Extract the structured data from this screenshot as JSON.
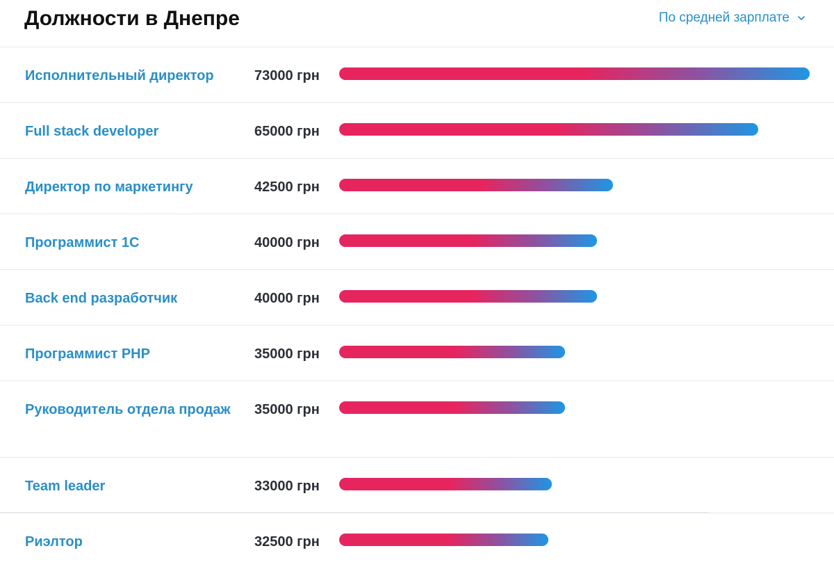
{
  "header": {
    "title": "Должности в Днепре",
    "sort_label": "По средней зарплате",
    "sort_icon": "chevron-down-icon"
  },
  "colors": {
    "link": "#2a8fc6",
    "bar_start": "#e6255f",
    "bar_end": "#1f96e3"
  },
  "chart_data": {
    "type": "bar",
    "orientation": "horizontal",
    "categories": [
      "Исполнительный директор",
      "Full stack developer",
      "Директор по маркетингу",
      "Программист 1С",
      "Back end разработчик",
      "Программист PHP",
      "Руководитель отдела продаж",
      "Team leader",
      "Риэлтор"
    ],
    "values": [
      73000,
      65000,
      42500,
      40000,
      40000,
      35000,
      35000,
      33000,
      32500
    ],
    "value_labels": [
      "73000 грн",
      "65000 грн",
      "42500 грн",
      "40000 грн",
      "40000 грн",
      "35000 грн",
      "35000 грн",
      "33000 грн",
      "32500 грн"
    ],
    "xlim": [
      0,
      73000
    ],
    "grid": false,
    "legend": "none"
  }
}
